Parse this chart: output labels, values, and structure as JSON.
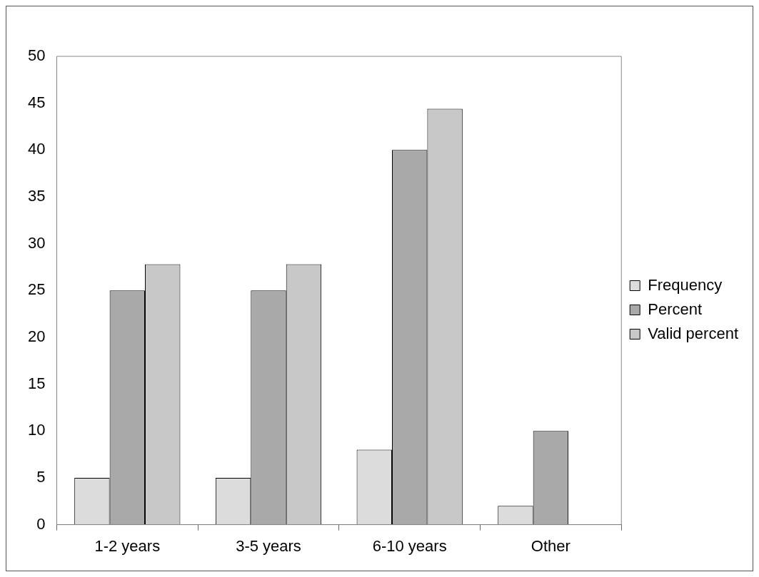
{
  "chart_data": {
    "type": "bar",
    "categories": [
      "1-2 years",
      "3-5 years",
      "6-10 years",
      "Other"
    ],
    "series": [
      {
        "name": "Frequency",
        "color": "#dcdcdc",
        "values": [
          5,
          5,
          8,
          2
        ]
      },
      {
        "name": "Percent",
        "color": "#a9a9a9",
        "values": [
          25,
          25,
          40,
          10
        ]
      },
      {
        "name": "Valid percent",
        "color": "#c8c8c8",
        "values": [
          27.8,
          27.8,
          44.4,
          null
        ]
      }
    ],
    "ylim": [
      0,
      50
    ],
    "yticks": [
      0,
      5,
      10,
      15,
      20,
      25,
      30,
      35,
      40,
      45,
      50
    ],
    "grid": false,
    "legend": "right"
  }
}
